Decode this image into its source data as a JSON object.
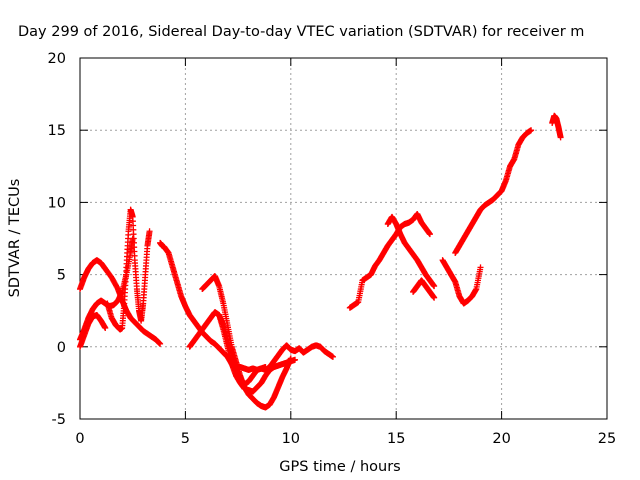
{
  "chart_data": {
    "type": "scatter",
    "title": "Day 299 of 2016, Sidereal Day-to-day VTEC variation (SDTVAR) for receiver m",
    "xlabel": "GPS time / hours",
    "ylabel": "SDTVAR / TECUs",
    "xlim": [
      0,
      25
    ],
    "ylim": [
      -5,
      20
    ],
    "xticks": [
      0,
      5,
      10,
      15,
      20,
      25
    ],
    "yticks": [
      -5,
      0,
      5,
      10,
      15,
      20
    ],
    "grid": true,
    "marker": "+",
    "color": "#ff0000",
    "series": [
      {
        "x": [
          0.0,
          0.2,
          0.4,
          0.6,
          0.8,
          1.0,
          1.2,
          1.5,
          1.8,
          2.0,
          2.2,
          2.4,
          2.6,
          2.8,
          3.0,
          3.2,
          3.4,
          3.6,
          3.8
        ],
        "y": [
          4.0,
          4.8,
          5.4,
          5.8,
          6.0,
          5.8,
          5.4,
          4.8,
          4.0,
          3.2,
          2.5,
          2.0,
          1.7,
          1.4,
          1.1,
          0.9,
          0.7,
          0.5,
          0.2
        ]
      },
      {
        "x": [
          0.0,
          0.2,
          0.4,
          0.6,
          0.8,
          1.0,
          1.2,
          1.4,
          1.6,
          1.8,
          2.0,
          2.2,
          2.4,
          2.5
        ],
        "y": [
          0.5,
          1.2,
          2.0,
          2.6,
          3.0,
          3.2,
          3.0,
          2.8,
          2.9,
          3.2,
          3.8,
          5.0,
          6.5,
          7.5
        ]
      },
      {
        "x": [
          0.0,
          0.2,
          0.4,
          0.6,
          0.8,
          1.0,
          1.2
        ],
        "y": [
          0.0,
          0.8,
          1.6,
          2.1,
          2.2,
          1.8,
          1.3
        ]
      },
      {
        "x": [
          1.3,
          1.5,
          1.7,
          1.9,
          2.0,
          2.1,
          2.2,
          2.3,
          2.4,
          2.5,
          2.6,
          2.7,
          2.8,
          2.9,
          3.0,
          3.1,
          3.2,
          3.3
        ],
        "y": [
          3.0,
          2.0,
          1.5,
          1.2,
          1.3,
          3.0,
          5.5,
          8.0,
          9.5,
          9.0,
          6.0,
          4.0,
          2.5,
          1.8,
          3.0,
          5.0,
          7.0,
          8.0
        ]
      },
      {
        "x": [
          3.8,
          3.9,
          4.0,
          4.2,
          4.4,
          4.6,
          4.8,
          5.0,
          5.2,
          5.4,
          5.6,
          5.8,
          6.0,
          6.2,
          6.4,
          6.6,
          6.8,
          7.0,
          7.2,
          7.4,
          7.6,
          7.8,
          8.0,
          8.2,
          8.4,
          8.6,
          8.8
        ],
        "y": [
          7.2,
          7.0,
          6.9,
          6.5,
          5.5,
          4.5,
          3.5,
          2.8,
          2.2,
          1.8,
          1.4,
          1.0,
          0.7,
          0.4,
          0.2,
          -0.1,
          -0.4,
          -0.7,
          -1.2,
          -1.5,
          -1.4,
          -1.5,
          -1.6,
          -1.5,
          -1.6,
          -1.5,
          -1.4
        ]
      },
      {
        "x": [
          5.2,
          5.4,
          5.6,
          5.8,
          6.0,
          6.2,
          6.4,
          6.6,
          6.8,
          7.0,
          7.2,
          7.4,
          7.6,
          7.8,
          8.0,
          8.2,
          8.4,
          8.6,
          8.8,
          9.0,
          9.2,
          9.4,
          9.6,
          9.8,
          10.0,
          10.2,
          10.4,
          10.6,
          10.8,
          11.0,
          11.2,
          11.4,
          11.6,
          11.8,
          12.0
        ],
        "y": [
          0.0,
          0.4,
          0.8,
          1.2,
          1.6,
          2.0,
          2.4,
          2.2,
          1.5,
          0.5,
          -0.5,
          -1.5,
          -2.2,
          -2.6,
          -2.4,
          -2.0,
          -1.6,
          -1.5,
          -1.6,
          -1.4,
          -1.0,
          -0.6,
          -0.2,
          0.1,
          -0.2,
          -0.3,
          -0.1,
          -0.4,
          -0.2,
          0.0,
          0.1,
          0.0,
          -0.3,
          -0.5,
          -0.7
        ]
      },
      {
        "x": [
          5.8,
          6.0,
          6.2,
          6.4,
          6.6,
          6.8,
          7.0,
          7.2,
          7.4,
          7.6,
          7.8,
          8.0,
          8.2,
          8.4,
          8.6,
          8.8,
          9.0,
          9.2,
          9.4,
          9.6,
          9.8,
          10.0
        ],
        "y": [
          4.0,
          4.3,
          4.6,
          4.9,
          4.2,
          3.0,
          1.5,
          0.0,
          -1.0,
          -2.0,
          -2.8,
          -3.3,
          -3.6,
          -3.9,
          -4.1,
          -4.2,
          -4.0,
          -3.5,
          -2.8,
          -2.1,
          -1.5,
          -0.8
        ]
      },
      {
        "x": [
          6.6,
          6.8,
          7.0,
          7.2,
          7.4,
          7.6,
          7.8,
          8.0,
          8.2,
          8.4,
          8.6,
          8.8,
          9.0,
          9.2,
          9.4,
          9.6,
          9.8,
          10.0,
          10.2
        ],
        "y": [
          2.2,
          1.2,
          0.0,
          -1.2,
          -2.0,
          -2.5,
          -2.9,
          -3.0,
          -3.1,
          -2.8,
          -2.5,
          -2.0,
          -1.6,
          -1.4,
          -1.3,
          -1.2,
          -1.1,
          -1.0,
          -0.9
        ]
      },
      {
        "x": [
          12.8,
          13.0,
          13.2,
          13.4,
          13.6,
          13.8,
          14.0,
          14.2,
          14.4,
          14.6,
          14.8,
          15.0,
          15.2,
          15.4,
          15.6,
          15.8,
          16.0,
          16.2,
          16.4,
          16.6
        ],
        "y": [
          2.7,
          2.9,
          3.1,
          4.6,
          4.8,
          5.0,
          5.6,
          6.0,
          6.5,
          7.0,
          7.4,
          7.8,
          8.3,
          8.5,
          8.6,
          8.8,
          9.2,
          8.6,
          8.2,
          7.8
        ]
      },
      {
        "x": [
          14.6,
          14.8,
          15.0,
          15.2,
          15.4,
          15.6,
          15.8,
          16.0,
          16.2,
          16.4,
          16.6,
          16.8
        ],
        "y": [
          8.5,
          9.0,
          8.5,
          7.8,
          7.2,
          6.8,
          6.4,
          6.0,
          5.5,
          5.0,
          4.6,
          4.2
        ]
      },
      {
        "x": [
          15.8,
          16.0,
          16.2,
          16.4,
          16.6,
          16.8
        ],
        "y": [
          3.8,
          4.2,
          4.6,
          4.2,
          3.8,
          3.4
        ]
      },
      {
        "x": [
          17.2,
          17.4,
          17.6,
          17.8,
          18.0,
          18.2,
          18.4,
          18.6,
          18.8,
          19.0
        ],
        "y": [
          6.0,
          5.5,
          5.0,
          4.5,
          3.5,
          3.0,
          3.2,
          3.5,
          4.0,
          5.5
        ]
      },
      {
        "x": [
          17.8,
          18.0,
          18.2,
          18.4,
          18.6,
          18.8,
          19.0,
          19.2,
          19.4,
          19.6,
          19.8,
          20.0,
          20.2,
          20.4,
          20.6,
          20.8,
          21.0,
          21.2,
          21.4
        ],
        "y": [
          6.5,
          7.0,
          7.5,
          8.0,
          8.5,
          9.0,
          9.5,
          9.8,
          10.0,
          10.2,
          10.5,
          10.8,
          11.5,
          12.5,
          13.0,
          14.0,
          14.5,
          14.8,
          15.0
        ]
      },
      {
        "x": [
          22.4,
          22.5,
          22.6,
          22.7,
          22.8
        ],
        "y": [
          15.5,
          16.0,
          15.8,
          15.2,
          14.5
        ]
      }
    ]
  }
}
